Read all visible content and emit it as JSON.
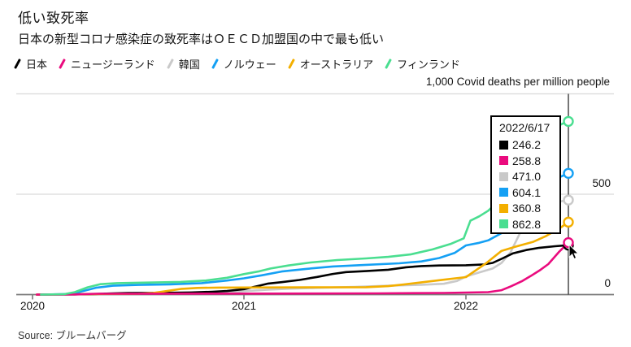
{
  "header": {
    "title": "低い致死率",
    "subtitle": "日本の新型コロナ感染症の致死率はＯＥＣＤ加盟国の中で最も低い"
  },
  "source": {
    "text": "Source: ブルームバーグ"
  },
  "chart_data": {
    "type": "line",
    "unit_label": "Covid deaths per million people",
    "y_axis": {
      "ticks": [
        {
          "label": "1,000",
          "value": 1000
        },
        {
          "label": "500",
          "value": 500
        },
        {
          "label": "0",
          "value": 0
        }
      ],
      "range": [
        0,
        1000
      ],
      "grid": true
    },
    "x_axis": {
      "ticks": [
        {
          "label": "2020",
          "value": 2020
        },
        {
          "label": "2021",
          "value": 2021
        },
        {
          "label": "2022",
          "value": 2022
        }
      ],
      "range": [
        2020,
        2022.46
      ]
    },
    "tooltip": {
      "date": "2022/6/17"
    },
    "series": [
      {
        "name": "日本",
        "color": "#000000",
        "end_value": "246.2",
        "points": [
          [
            2020.02,
            0
          ],
          [
            2020.2,
            1
          ],
          [
            2020.3,
            3
          ],
          [
            2020.38,
            6
          ],
          [
            2020.45,
            7.5
          ],
          [
            2020.6,
            8.5
          ],
          [
            2020.75,
            10.5
          ],
          [
            2020.85,
            14
          ],
          [
            2020.92,
            18
          ],
          [
            2021.0,
            27
          ],
          [
            2021.06,
            42
          ],
          [
            2021.11,
            55
          ],
          [
            2021.17,
            62
          ],
          [
            2021.25,
            73
          ],
          [
            2021.33,
            88
          ],
          [
            2021.4,
            103
          ],
          [
            2021.46,
            112
          ],
          [
            2021.55,
            117
          ],
          [
            2021.65,
            124
          ],
          [
            2021.73,
            136
          ],
          [
            2021.8,
            142
          ],
          [
            2021.88,
            145
          ],
          [
            2022.0,
            146
          ],
          [
            2022.08,
            150
          ],
          [
            2022.12,
            158
          ],
          [
            2022.16,
            178
          ],
          [
            2022.21,
            205
          ],
          [
            2022.27,
            222
          ],
          [
            2022.33,
            233
          ],
          [
            2022.4,
            241
          ],
          [
            2022.46,
            246.2
          ]
        ]
      },
      {
        "name": "ニュージーランド",
        "color": "#EA0B7E",
        "end_value": "258.8",
        "points": [
          [
            2020.02,
            0
          ],
          [
            2020.2,
            1
          ],
          [
            2020.3,
            4
          ],
          [
            2020.6,
            4.5
          ],
          [
            2021.0,
            5
          ],
          [
            2021.6,
            6
          ],
          [
            2021.9,
            8
          ],
          [
            2022.0,
            10
          ],
          [
            2022.1,
            12
          ],
          [
            2022.16,
            22
          ],
          [
            2022.2,
            40
          ],
          [
            2022.25,
            66
          ],
          [
            2022.29,
            92
          ],
          [
            2022.33,
            120
          ],
          [
            2022.37,
            152
          ],
          [
            2022.42,
            215
          ],
          [
            2022.46,
            258.8
          ]
        ]
      },
      {
        "name": "韓国",
        "color": "#C9C9C9",
        "end_value": "471.0",
        "points": [
          [
            2020.02,
            0
          ],
          [
            2020.17,
            2
          ],
          [
            2020.3,
            4
          ],
          [
            2020.6,
            6
          ],
          [
            2020.8,
            8
          ],
          [
            2020.92,
            11
          ],
          [
            2021.0,
            17
          ],
          [
            2021.1,
            24
          ],
          [
            2021.2,
            29
          ],
          [
            2021.35,
            34
          ],
          [
            2021.5,
            38
          ],
          [
            2021.65,
            44
          ],
          [
            2021.8,
            49
          ],
          [
            2021.9,
            54
          ],
          [
            2021.96,
            68
          ],
          [
            2022.0,
            90
          ],
          [
            2022.06,
            110
          ],
          [
            2022.12,
            130
          ],
          [
            2022.16,
            158
          ],
          [
            2022.2,
            210
          ],
          [
            2022.24,
            300
          ],
          [
            2022.28,
            390
          ],
          [
            2022.31,
            430
          ],
          [
            2022.34,
            448
          ],
          [
            2022.4,
            460
          ],
          [
            2022.46,
            471
          ]
        ]
      },
      {
        "name": "ノルウェー",
        "color": "#14A0F4",
        "end_value": "604.1",
        "points": [
          [
            2020.04,
            0
          ],
          [
            2020.18,
            3
          ],
          [
            2020.24,
            18
          ],
          [
            2020.3,
            34
          ],
          [
            2020.38,
            44
          ],
          [
            2020.5,
            48
          ],
          [
            2020.65,
            51
          ],
          [
            2020.8,
            57
          ],
          [
            2020.92,
            70
          ],
          [
            2021.0,
            81
          ],
          [
            2021.08,
            96
          ],
          [
            2021.17,
            115
          ],
          [
            2021.28,
            128
          ],
          [
            2021.4,
            140
          ],
          [
            2021.55,
            148
          ],
          [
            2021.7,
            156
          ],
          [
            2021.8,
            165
          ],
          [
            2021.88,
            182
          ],
          [
            2021.95,
            208
          ],
          [
            2022.0,
            245
          ],
          [
            2022.06,
            258
          ],
          [
            2022.1,
            270
          ],
          [
            2022.16,
            306
          ],
          [
            2022.2,
            370
          ],
          [
            2022.25,
            464
          ],
          [
            2022.3,
            505
          ],
          [
            2022.36,
            545
          ],
          [
            2022.42,
            585
          ],
          [
            2022.46,
            604.1
          ]
        ]
      },
      {
        "name": "オーストラリア",
        "color": "#F3AF00",
        "end_value": "360.8",
        "points": [
          [
            2020.02,
            0
          ],
          [
            2020.2,
            1.5
          ],
          [
            2020.3,
            3
          ],
          [
            2020.5,
            4.2
          ],
          [
            2020.57,
            8
          ],
          [
            2020.63,
            17
          ],
          [
            2020.7,
            28
          ],
          [
            2020.78,
            33
          ],
          [
            2020.88,
            35
          ],
          [
            2021.0,
            35.4
          ],
          [
            2021.3,
            36
          ],
          [
            2021.55,
            37
          ],
          [
            2021.65,
            42
          ],
          [
            2021.72,
            50
          ],
          [
            2021.8,
            61
          ],
          [
            2021.9,
            74
          ],
          [
            2022.0,
            87
          ],
          [
            2022.05,
            125
          ],
          [
            2022.09,
            156
          ],
          [
            2022.16,
            218
          ],
          [
            2022.22,
            238
          ],
          [
            2022.3,
            262
          ],
          [
            2022.36,
            292
          ],
          [
            2022.42,
            330
          ],
          [
            2022.46,
            360.8
          ]
        ]
      },
      {
        "name": "フィンランド",
        "color": "#4ADE90",
        "end_value": "862.8",
        "points": [
          [
            2020.04,
            0
          ],
          [
            2020.15,
            2
          ],
          [
            2020.2,
            12
          ],
          [
            2020.26,
            36
          ],
          [
            2020.32,
            52
          ],
          [
            2020.4,
            57
          ],
          [
            2020.55,
            60
          ],
          [
            2020.7,
            63
          ],
          [
            2020.82,
            70
          ],
          [
            2020.92,
            84
          ],
          [
            2021.0,
            102
          ],
          [
            2021.07,
            116
          ],
          [
            2021.12,
            130
          ],
          [
            2021.2,
            145
          ],
          [
            2021.3,
            160
          ],
          [
            2021.42,
            172
          ],
          [
            2021.55,
            180
          ],
          [
            2021.65,
            188
          ],
          [
            2021.75,
            200
          ],
          [
            2021.85,
            225
          ],
          [
            2021.93,
            252
          ],
          [
            2021.99,
            280
          ],
          [
            2022.02,
            368
          ],
          [
            2022.06,
            390
          ],
          [
            2022.1,
            418
          ],
          [
            2022.16,
            480
          ],
          [
            2022.21,
            555
          ],
          [
            2022.27,
            645
          ],
          [
            2022.33,
            760
          ],
          [
            2022.38,
            812
          ],
          [
            2022.43,
            850
          ],
          [
            2022.46,
            862.8
          ]
        ]
      }
    ]
  }
}
